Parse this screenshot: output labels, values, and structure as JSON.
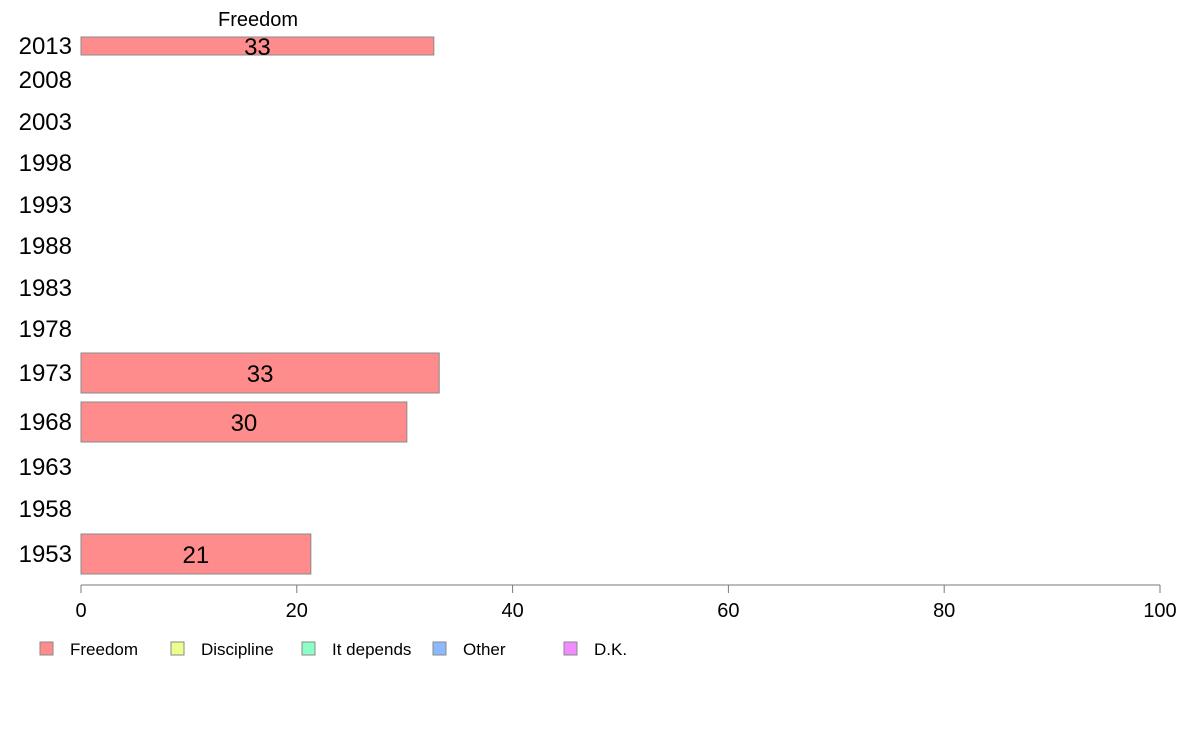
{
  "chart_data": {
    "type": "bar",
    "orientation": "horizontal",
    "column_header": "Freedom",
    "categories": [
      "2013",
      "2008",
      "2003",
      "1998",
      "1993",
      "1988",
      "1983",
      "1978",
      "1973",
      "1968",
      "1963",
      "1958",
      "1953"
    ],
    "series": [
      {
        "name": "Freedom",
        "color": "#ff8c8c",
        "values": [
          32.7,
          null,
          null,
          null,
          null,
          null,
          null,
          null,
          33.2,
          30.2,
          null,
          null,
          21.3
        ],
        "labels": [
          "33",
          "",
          "",
          "",
          "",
          "",
          "",
          "",
          "33",
          "30",
          "",
          "",
          "21"
        ]
      }
    ],
    "xlim": [
      0,
      100
    ],
    "xticks": [
      0,
      20,
      40,
      60,
      80,
      100
    ],
    "grid": false,
    "legend": {
      "placement": "bottom-left",
      "entries": [
        {
          "name": "Freedom",
          "color": "#ff8c8c"
        },
        {
          "name": "Discipline",
          "color": "#ecff8c"
        },
        {
          "name": "It depends",
          "color": "#8cffc6"
        },
        {
          "name": "Other",
          "color": "#8cb8ff"
        },
        {
          "name": "D.K.",
          "color": "#f08cff"
        }
      ]
    }
  }
}
